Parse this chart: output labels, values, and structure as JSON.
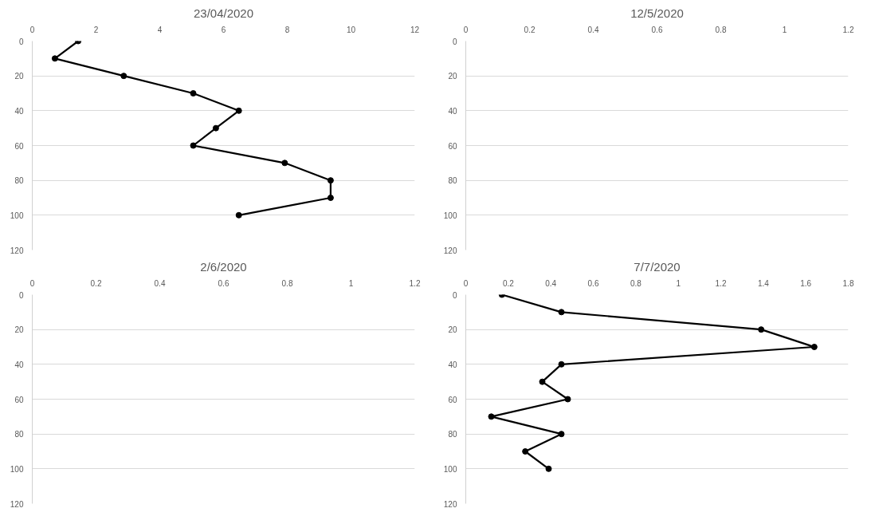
{
  "chart_data": [
    {
      "type": "line",
      "title": "23/04/2020",
      "xlim": [
        0,
        12
      ],
      "xticks": [
        0,
        2,
        4,
        6,
        8,
        10,
        12
      ],
      "ylim": [
        120,
        0
      ],
      "yticks": [
        0,
        20,
        40,
        60,
        80,
        100,
        120
      ],
      "grid": "y",
      "marker": "circle",
      "line_style": "solid",
      "series": [
        {
          "color": "#000000",
          "x": [
            1.44,
            0.71,
            2.87,
            5.05,
            6.48,
            5.76,
            5.05,
            7.92,
            9.36,
            9.36,
            6.48
          ],
          "values": [
            0,
            10,
            20,
            30,
            40,
            50,
            60,
            70,
            80,
            90,
            100
          ]
        }
      ]
    },
    {
      "type": "line",
      "title": "12/5/2020",
      "xlim": [
        0,
        1.2
      ],
      "xticks": [
        0,
        0.2,
        0.4,
        0.6,
        0.8,
        1,
        1.2
      ],
      "ylim": [
        120,
        0
      ],
      "yticks": [
        0,
        20,
        40,
        60,
        80,
        100,
        120
      ],
      "grid": "y"
    },
    {
      "type": "line",
      "title": "2/6/2020",
      "xlim": [
        0,
        1.2
      ],
      "xticks": [
        0,
        0.2,
        0.4,
        0.6,
        0.8,
        1,
        1.2
      ],
      "ylim": [
        120,
        0
      ],
      "yticks": [
        0,
        20,
        40,
        60,
        80,
        100,
        120
      ],
      "grid": "y"
    },
    {
      "type": "line",
      "title": "7/7/2020",
      "xlim": [
        0,
        1.8
      ],
      "xticks": [
        0,
        0.2,
        0.4,
        0.6,
        0.8,
        1,
        1.2,
        1.4,
        1.6,
        1.8
      ],
      "ylim": [
        120,
        0
      ],
      "yticks": [
        0,
        20,
        40,
        60,
        80,
        100,
        120
      ],
      "grid": "y",
      "marker": "circle",
      "line_style": "solid",
      "series": [
        {
          "color": "#000000",
          "x": [
            0.17,
            0.45,
            1.39,
            1.64,
            0.45,
            0.36,
            0.48,
            0.12,
            0.45,
            0.28,
            0.39
          ],
          "values": [
            0,
            10,
            20,
            30,
            40,
            50,
            60,
            70,
            80,
            90,
            100
          ]
        }
      ]
    }
  ]
}
